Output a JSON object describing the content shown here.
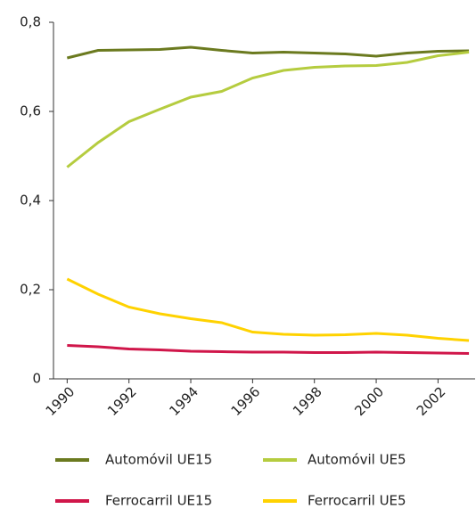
{
  "chart_data": {
    "type": "line",
    "x": [
      1990,
      1991,
      1992,
      1993,
      1994,
      1995,
      1996,
      1997,
      1998,
      1999,
      2000,
      2001,
      2002,
      2003
    ],
    "series": [
      {
        "name": "Automóvil UE15",
        "color": "#6b7a1f",
        "values": [
          0.72,
          0.737,
          0.738,
          0.739,
          0.744,
          0.737,
          0.731,
          0.733,
          0.731,
          0.729,
          0.724,
          0.731,
          0.735,
          0.736
        ]
      },
      {
        "name": "Automóvil UE5",
        "color": "#b5cc3f",
        "values": [
          0.475,
          0.53,
          0.577,
          0.605,
          0.632,
          0.645,
          0.675,
          0.692,
          0.699,
          0.702,
          0.703,
          0.71,
          0.725,
          0.733
        ]
      },
      {
        "name": "Ferrocarril UE15",
        "color": "#d0164a",
        "values": [
          0.075,
          0.072,
          0.067,
          0.065,
          0.062,
          0.061,
          0.06,
          0.06,
          0.059,
          0.059,
          0.06,
          0.059,
          0.058,
          0.057
        ]
      },
      {
        "name": "Ferrocarril UE5",
        "color": "#ffd200",
        "values": [
          0.224,
          0.19,
          0.161,
          0.146,
          0.135,
          0.126,
          0.105,
          0.1,
          0.098,
          0.099,
          0.102,
          0.098,
          0.091,
          0.086
        ]
      }
    ],
    "xlim": [
      1989.5,
      2003.2
    ],
    "xticks": [
      1990,
      1992,
      1994,
      1996,
      1998,
      2000,
      2002
    ],
    "ylim": [
      0,
      0.8
    ],
    "yticks": [
      0,
      {
        "value": 0.2,
        "label": "0,2"
      },
      {
        "value": 0.4,
        "label": "0,4"
      },
      {
        "value": 0.6,
        "label": "0,6"
      },
      {
        "value": 0.8,
        "label": "0,8"
      }
    ],
    "legend": "bottom"
  }
}
